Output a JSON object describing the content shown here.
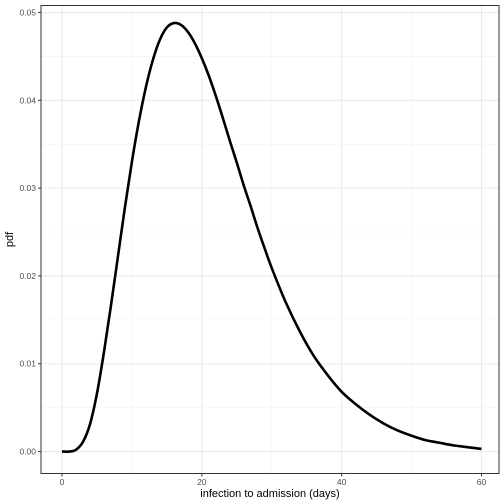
{
  "chart_data": {
    "type": "line",
    "title": "",
    "xlabel": "infection to admission (days)",
    "ylabel": "pdf",
    "xlim": [
      -3,
      62.5
    ],
    "ylim": [
      -0.0025,
      0.0508
    ],
    "x_ticks": [
      0,
      20,
      40,
      60
    ],
    "x_tick_labels": [
      "0",
      "20",
      "40",
      "60"
    ],
    "x_minor_ticks": [
      10,
      30,
      50
    ],
    "y_ticks": [
      0,
      0.01,
      0.02,
      0.03,
      0.04,
      0.05
    ],
    "y_tick_labels": [
      "0.00",
      "0.01",
      "0.02",
      "0.03",
      "0.04",
      "0.05"
    ],
    "y_minor_ticks": [
      0.005,
      0.015,
      0.025,
      0.035,
      0.045
    ],
    "grid": true,
    "legend": "none",
    "series": [
      {
        "color": "#000000",
        "x": [
          0,
          1,
          2,
          3,
          4,
          5,
          6,
          7,
          8,
          9,
          10,
          11,
          12,
          13,
          14,
          15,
          16,
          17,
          18,
          19,
          20,
          21,
          22,
          23,
          24,
          25,
          26,
          27,
          28,
          29,
          30,
          32,
          34,
          36,
          38,
          40,
          42,
          44,
          46,
          48,
          50,
          52,
          54,
          56,
          58,
          60
        ],
        "values": [
          0.0,
          0.0,
          0.0002,
          0.0011,
          0.0031,
          0.0066,
          0.0113,
          0.0166,
          0.0222,
          0.0278,
          0.033,
          0.0376,
          0.0415,
          0.0446,
          0.0469,
          0.0483,
          0.0488,
          0.0486,
          0.0478,
          0.0465,
          0.0448,
          0.0428,
          0.0405,
          0.038,
          0.0354,
          0.0329,
          0.0303,
          0.0279,
          0.0254,
          0.0231,
          0.0209,
          0.017,
          0.0137,
          0.0109,
          0.0087,
          0.0068,
          0.0054,
          0.0042,
          0.0032,
          0.0024,
          0.0018,
          0.0013,
          0.001,
          0.0007,
          0.0005,
          0.0003
        ]
      }
    ]
  }
}
